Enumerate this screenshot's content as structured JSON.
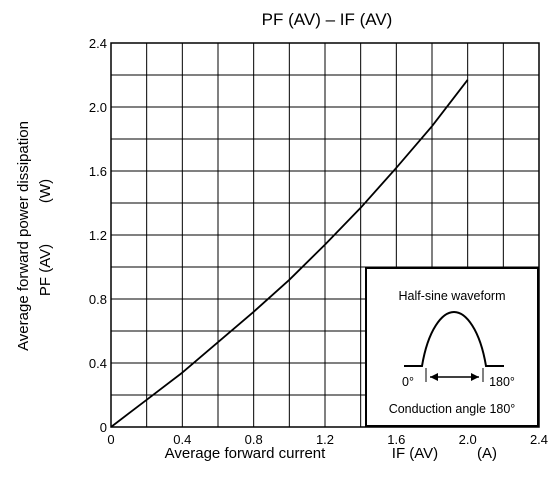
{
  "chart_data": {
    "type": "line",
    "title": "PF (AV) – IF (AV)",
    "xlabel": "Average forward current",
    "xlabel_symbol": "IF (AV)",
    "xlabel_unit": "(A)",
    "ylabel": "Average forward power dissipation",
    "ylabel_symbol": "PF (AV)",
    "ylabel_unit": "(W)",
    "xlim": [
      0,
      2.4
    ],
    "ylim": [
      0,
      2.4
    ],
    "x_ticks": [
      "0",
      "0.4",
      "0.8",
      "1.2",
      "1.6",
      "2.0",
      "2.4"
    ],
    "y_ticks": [
      "0",
      "0.4",
      "0.8",
      "1.2",
      "1.6",
      "2.0",
      "2.4"
    ],
    "grid": true,
    "grid_step": 0.2,
    "series": [
      {
        "x": [
          0,
          0.2,
          0.4,
          0.6,
          0.8,
          1.0,
          1.2,
          1.4,
          1.6,
          1.8,
          2.0
        ],
        "y": [
          0,
          0.17,
          0.34,
          0.53,
          0.72,
          0.92,
          1.14,
          1.37,
          1.62,
          1.88,
          2.17
        ]
      }
    ],
    "inset": {
      "title": "Half-sine waveform",
      "start_label": "0°",
      "end_label": "180°",
      "caption": "Conduction angle 180°"
    }
  },
  "colors": {
    "line": "#000000",
    "grid": "#000000",
    "background": "#ffffff"
  }
}
